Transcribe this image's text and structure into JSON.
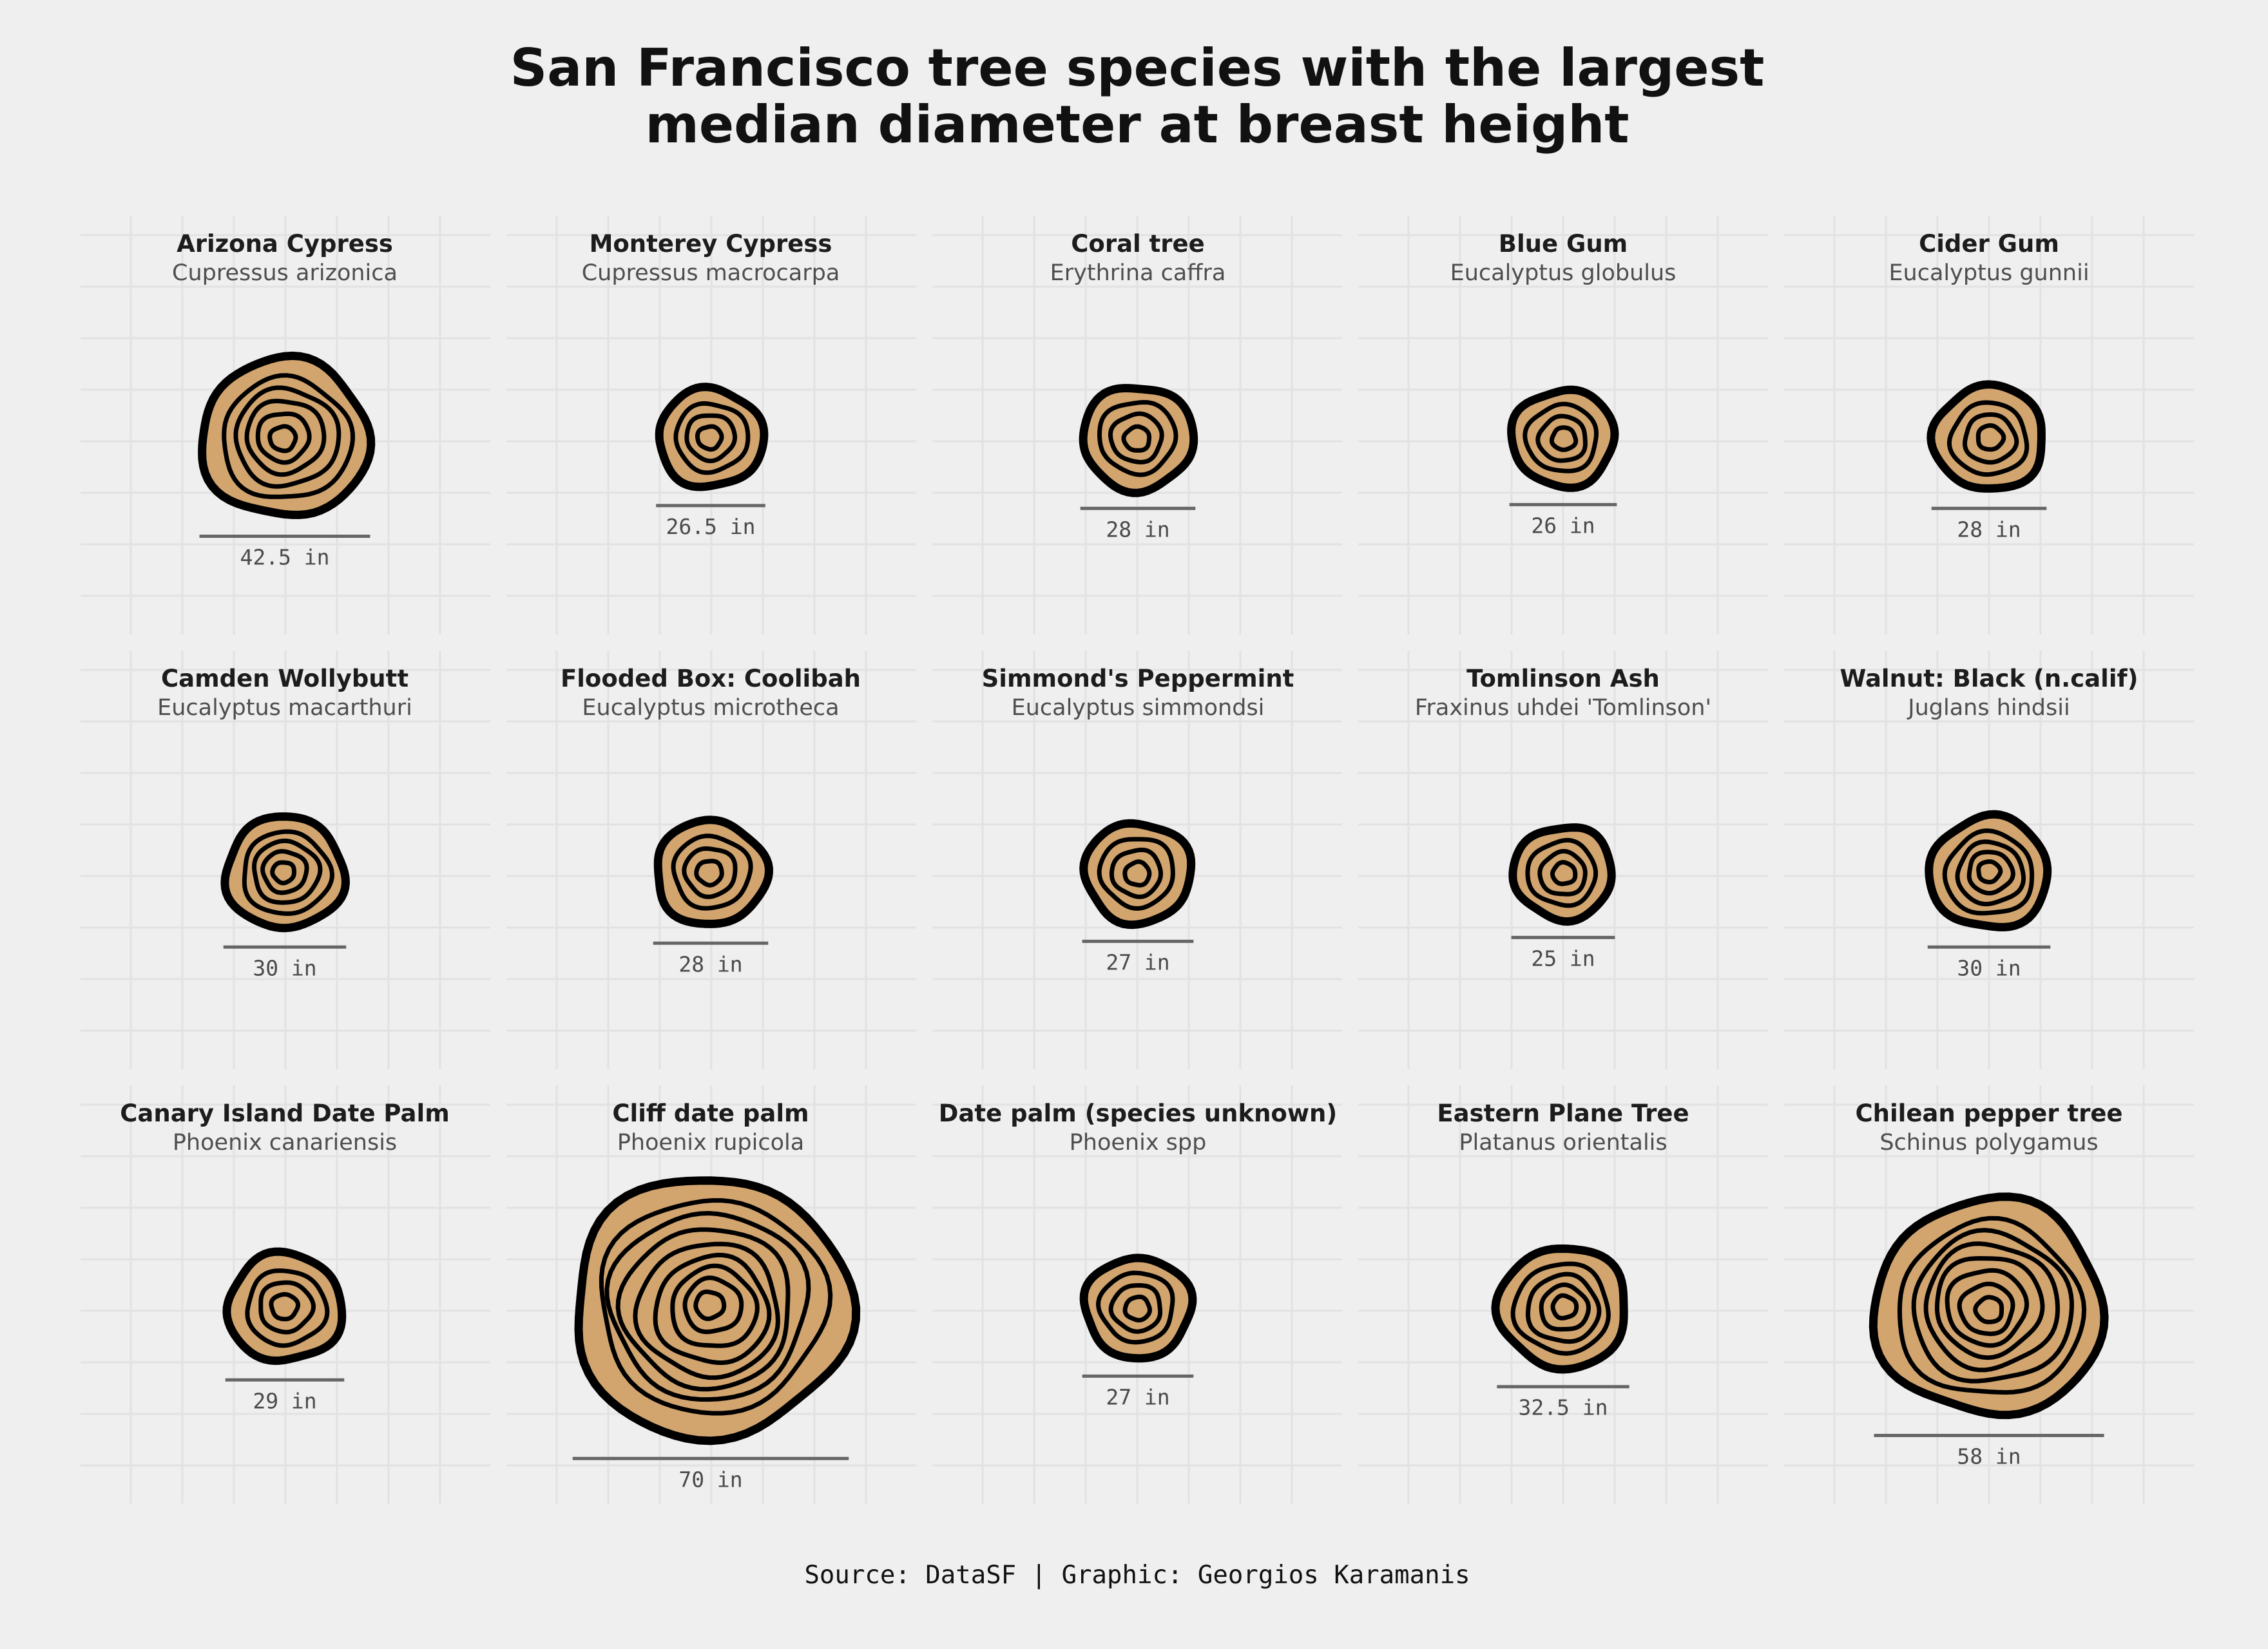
{
  "title_lines": [
    "San Francisco tree species with the largest",
    "median diameter at breast height"
  ],
  "caption": "Source: DataSF | Graphic: Georgios Karamanis",
  "colors": {
    "background": "#efefef",
    "grid": "#e2e2e2",
    "wood": "#d2a56f",
    "ring": "#000000",
    "measure_line": "#666666"
  },
  "chart_data": {
    "type": "small-multiples",
    "title": "San Francisco tree species with the largest median diameter at breast height",
    "unit": "in",
    "layout": {
      "columns": 5,
      "rows": 3
    },
    "grid": true,
    "panels": [
      {
        "common": "Arizona Cypress",
        "scientific": "Cupressus arizonica",
        "dbh": 42.5,
        "label": "42.5 in"
      },
      {
        "common": "Monterey Cypress",
        "scientific": "Cupressus macrocarpa",
        "dbh": 26.5,
        "label": "26.5 in"
      },
      {
        "common": "Coral tree",
        "scientific": "Erythrina caffra",
        "dbh": 28,
        "label": "28 in"
      },
      {
        "common": "Blue Gum",
        "scientific": "Eucalyptus globulus",
        "dbh": 26,
        "label": "26 in"
      },
      {
        "common": "Cider Gum",
        "scientific": "Eucalyptus gunnii",
        "dbh": 28,
        "label": "28 in"
      },
      {
        "common": "Camden Wollybutt",
        "scientific": "Eucalyptus macarthuri",
        "dbh": 30,
        "label": "30 in"
      },
      {
        "common": "Flooded Box: Coolibah",
        "scientific": "Eucalyptus microtheca",
        "dbh": 28,
        "label": "28 in"
      },
      {
        "common": "Simmond's Peppermint",
        "scientific": "Eucalyptus simmondsi",
        "dbh": 27,
        "label": "27 in"
      },
      {
        "common": "Tomlinson Ash",
        "scientific": "Fraxinus uhdei 'Tomlinson'",
        "dbh": 25,
        "label": "25 in"
      },
      {
        "common": "Walnut: Black (n.calif)",
        "scientific": "Juglans hindsii",
        "dbh": 30,
        "label": "30 in"
      },
      {
        "common": "Canary Island Date Palm",
        "scientific": "Phoenix canariensis",
        "dbh": 29,
        "label": "29 in"
      },
      {
        "common": "Cliff date palm",
        "scientific": "Phoenix rupicola",
        "dbh": 70,
        "label": "70 in"
      },
      {
        "common": "Date palm (species unknown)",
        "scientific": "Phoenix spp",
        "dbh": 27,
        "label": "27 in"
      },
      {
        "common": "Eastern Plane Tree",
        "scientific": "Platanus orientalis",
        "dbh": 32.5,
        "label": "32.5 in"
      },
      {
        "common": "Chilean pepper tree",
        "scientific": "Schinus polygamus",
        "dbh": 58,
        "label": "58 in"
      }
    ]
  }
}
